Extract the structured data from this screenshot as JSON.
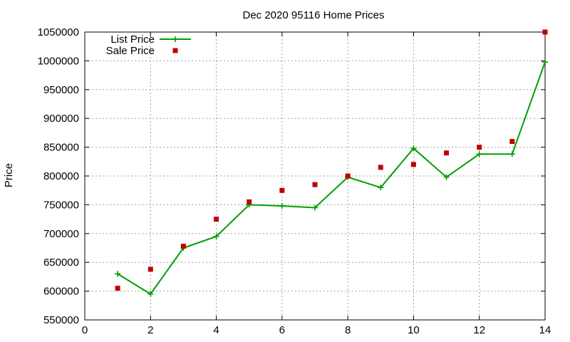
{
  "chart_data": {
    "type": "line",
    "title": "Dec 2020 95116 Home Prices",
    "xlabel": "",
    "ylabel": "Price",
    "xlim": [
      0,
      14
    ],
    "ylim": [
      550000,
      1050000
    ],
    "x_ticks": [
      0,
      2,
      4,
      6,
      8,
      10,
      12,
      14
    ],
    "y_ticks": [
      550000,
      600000,
      650000,
      700000,
      750000,
      800000,
      850000,
      900000,
      950000,
      1000000,
      1050000
    ],
    "grid": true,
    "legend_position": "top-left",
    "series": [
      {
        "name": "List Price",
        "style": "line-points",
        "marker": "plus",
        "color": "#00a000",
        "x": [
          1,
          2,
          3,
          4,
          5,
          6,
          7,
          8,
          9,
          10,
          11,
          12,
          13,
          14
        ],
        "values": [
          630000,
          595000,
          675000,
          695000,
          750000,
          748000,
          745000,
          798000,
          780000,
          848000,
          798000,
          838000,
          838000,
          998000
        ]
      },
      {
        "name": "Sale Price",
        "style": "points",
        "marker": "square",
        "color": "#c00000",
        "x": [
          1,
          2,
          3,
          4,
          5,
          6,
          7,
          8,
          9,
          10,
          11,
          12,
          13,
          14
        ],
        "values": [
          605000,
          638000,
          678000,
          725000,
          755000,
          775000,
          785000,
          800000,
          815000,
          820000,
          840000,
          850000,
          860000,
          1050000
        ]
      }
    ]
  }
}
